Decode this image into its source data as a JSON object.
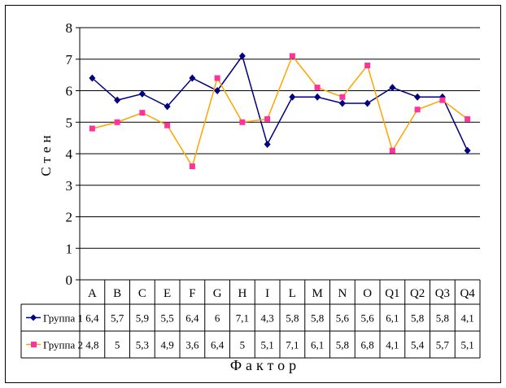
{
  "chart_data": {
    "type": "line",
    "ylabel": "Стен",
    "xlabel": "Фактор",
    "ylim": [
      0,
      8
    ],
    "yticks": [
      0,
      1,
      2,
      3,
      4,
      5,
      6,
      7,
      8
    ],
    "grid": true,
    "legend": "data table rows",
    "categories": [
      "A",
      "B",
      "C",
      "E",
      "F",
      "G",
      "H",
      "I",
      "L",
      "M",
      "N",
      "O",
      "Q1",
      "Q2",
      "Q3",
      "Q4"
    ],
    "series": [
      {
        "name": "Группа 1",
        "color": "#000080",
        "marker": "diamond",
        "values": [
          6.4,
          5.7,
          5.9,
          5.5,
          6.4,
          6,
          7.1,
          4.3,
          5.8,
          5.8,
          5.6,
          5.6,
          6.1,
          5.8,
          5.8,
          4.1
        ],
        "labels": [
          "6,4",
          "5,7",
          "5,9",
          "5,5",
          "6,4",
          "6",
          "7,1",
          "4,3",
          "5,8",
          "5,8",
          "5,6",
          "5,6",
          "6,1",
          "5,8",
          "5,8",
          "4,1"
        ]
      },
      {
        "name": "Группа 2",
        "color": "#FFA500",
        "marker_color": "#FF3399",
        "marker": "square",
        "values": [
          4.8,
          5,
          5.3,
          4.9,
          3.6,
          6.4,
          5,
          5.1,
          7.1,
          6.1,
          5.8,
          6.8,
          4.1,
          5.4,
          5.7,
          5.1
        ],
        "labels": [
          "4,8",
          "5",
          "5,3",
          "4,9",
          "3,6",
          "6,4",
          "5",
          "5,1",
          "7,1",
          "6,1",
          "5,8",
          "6,8",
          "4,1",
          "5,4",
          "5,7",
          "5,1"
        ]
      }
    ]
  }
}
